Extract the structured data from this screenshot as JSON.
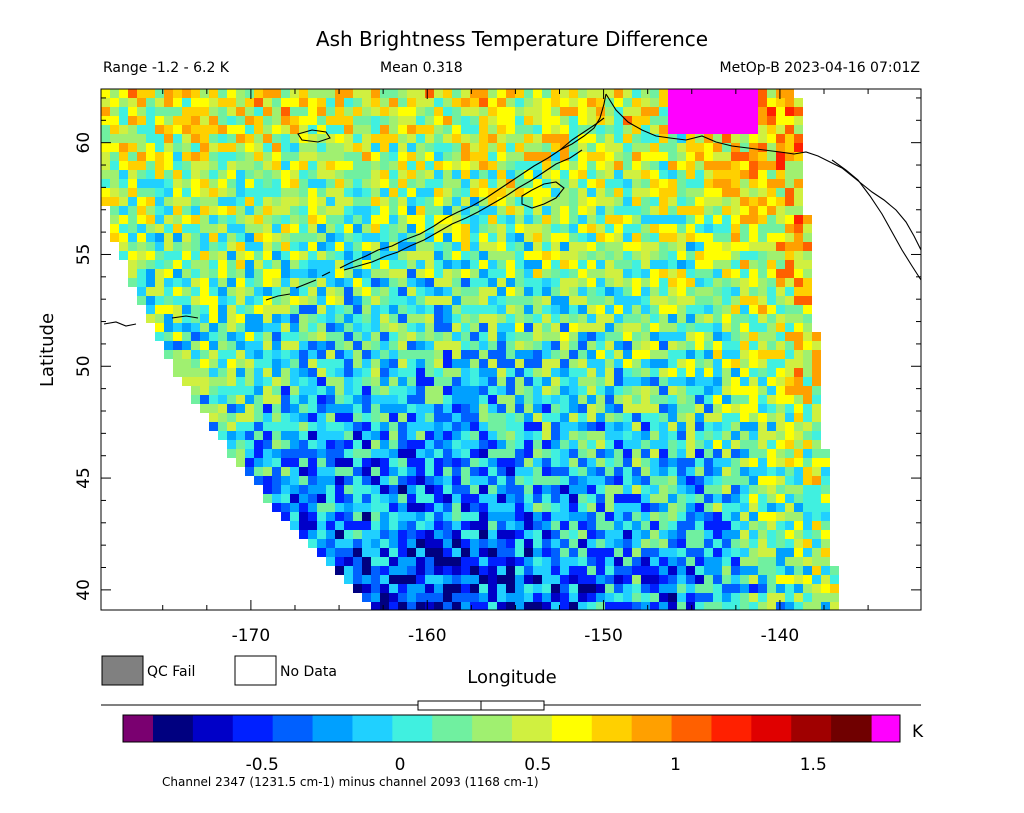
{
  "header": {
    "title": "Ash Brightness Temperature Difference",
    "range_text": "Range -1.2 - 6.2 K",
    "mean_text": "Mean 0.318",
    "satellite_time": "MetOp-B 2023-04-16 07:01Z"
  },
  "map": {
    "ylabel": "Latitude",
    "xlabel": "Longitude",
    "lon_ticks": [
      "-170",
      "-160",
      "-150",
      "-140"
    ],
    "lat_ticks": [
      "60",
      "55",
      "50",
      "45",
      "40"
    ],
    "lon_range": [
      -178.5,
      -132
    ],
    "lat_range": [
      39.1,
      62.4
    ]
  },
  "legend": {
    "qc_fail": "QC Fail",
    "no_data": "No Data",
    "qc_color": "#808080"
  },
  "colorbar": {
    "unit": "K",
    "tick_labels": [
      "-0.5",
      "0",
      "0.5",
      "1",
      "1.5"
    ],
    "value_range": [
      -0.95,
      1.85
    ],
    "under_color": "#7a0070",
    "over_color": "#ff00ff",
    "colors": [
      "#000080",
      "#0000c8",
      "#0020ff",
      "#0060ff",
      "#00a0ff",
      "#20d0ff",
      "#40f0e0",
      "#70f0a0",
      "#a0f070",
      "#d0f040",
      "#ffff00",
      "#ffd000",
      "#ffa000",
      "#ff6000",
      "#ff2000",
      "#e00000",
      "#a00000",
      "#700000"
    ]
  },
  "footer": {
    "channel_text": "Channel 2347 (1231.5 cm-1) minus channel 2093 (1168 cm-1)"
  }
}
